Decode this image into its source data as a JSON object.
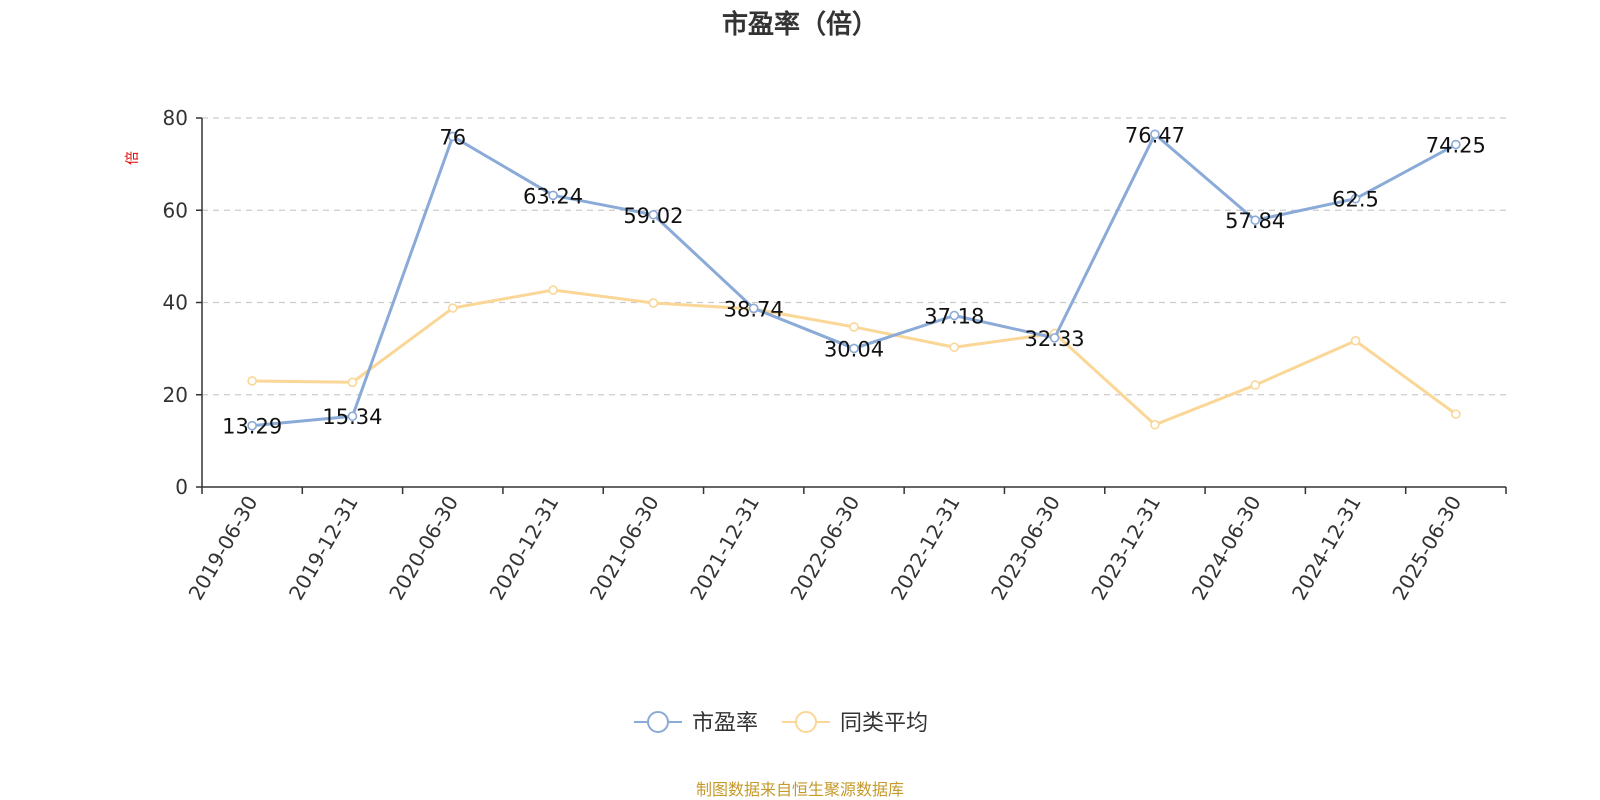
{
  "chart_data": {
    "type": "line",
    "title": "市盈率（倍）",
    "ylabel": "倍",
    "xlabel": "",
    "categories": [
      "2019-06-30",
      "2019-12-31",
      "2020-06-30",
      "2020-12-31",
      "2021-06-30",
      "2021-12-31",
      "2022-06-30",
      "2022-12-31",
      "2023-06-30",
      "2023-12-31",
      "2024-06-30",
      "2024-12-31",
      "2025-06-30"
    ],
    "ylim": [
      0,
      80
    ],
    "yticks": [
      "0",
      "20",
      "40",
      "60",
      "80"
    ],
    "grid": true,
    "legend_position": "bottom",
    "series": [
      {
        "name": "市盈率",
        "color": "#8aaad8",
        "values": [
          13.29,
          15.34,
          76,
          63.24,
          59.02,
          38.74,
          30.04,
          37.18,
          32.33,
          76.47,
          57.84,
          62.5,
          74.25
        ],
        "labels": [
          "13.29",
          "15.34",
          "76",
          "63.24",
          "59.02",
          "38.74",
          "30.04",
          "37.18",
          "32.33",
          "76.47",
          "57.84",
          "62.5",
          "74.25"
        ]
      },
      {
        "name": "同类平均",
        "color": "#fad797",
        "values": [
          23,
          22.7,
          38.8,
          42.7,
          39.9,
          38.6,
          34.7,
          30.3,
          33.3,
          13.5,
          22.1,
          31.7,
          15.8
        ]
      }
    ]
  },
  "footer": {
    "source": "制图数据来自恒生聚源数据库"
  }
}
